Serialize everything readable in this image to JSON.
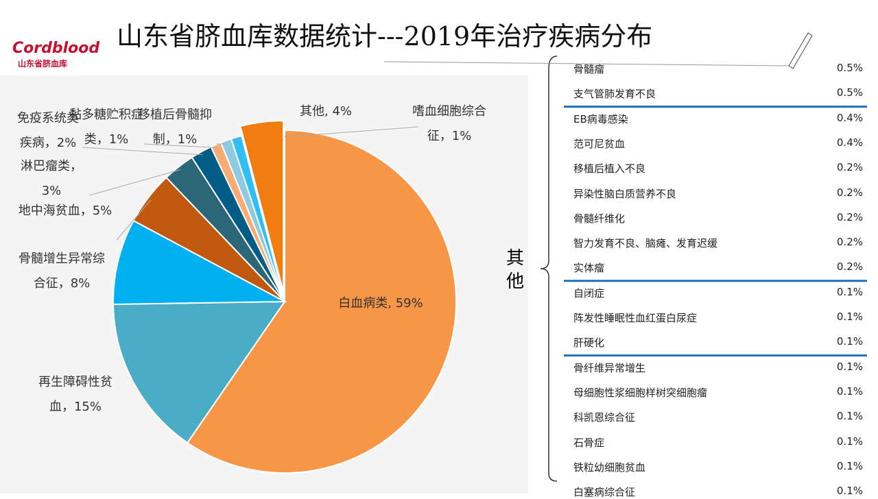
{
  "logo": {
    "brand": "Cordblood",
    "subtitle": "山东省脐血库"
  },
  "chart_data": {
    "type": "pie",
    "title": "山东省脐血库数据统计---2019年治疗疾病分布",
    "categories": [
      "白血病类, 59%",
      "再生障碍性贫血，15%",
      "骨髓增生异常综合征，8%",
      "地中海贫血，5%",
      "淋巴瘤类，3%",
      "免疫系统类疾病，2%",
      "黏多糖贮积症类，1%",
      "移植后骨髓抑制，1%",
      "嗜血细胞综合征，1%",
      "其他, 4%"
    ],
    "values": [
      59,
      15,
      8,
      5,
      3,
      2,
      1,
      1,
      1,
      4
    ],
    "colors": [
      "#f79646",
      "#4bacc6",
      "#00b0f0",
      "#c0580e",
      "#2c6778",
      "#015c86",
      "#f9ab74",
      "#8dcbe3",
      "#2fbff5",
      "#f17c12"
    ]
  },
  "table": {
    "group_label": "其他",
    "rows": [
      [
        "骨髓瘤",
        "0.5%"
      ],
      [
        "支气管肺发育不良",
        "0.5%"
      ],
      [
        "EB病毒感染",
        "0.4%"
      ],
      [
        "范可尼贫血",
        "0.4%"
      ],
      [
        "移植后植入不良",
        "0.2%"
      ],
      [
        "异染性脑白质营养不良",
        "0.2%"
      ],
      [
        "骨髓纤维化",
        "0.2%"
      ],
      [
        "智力发育不良、脑瘫、发育迟缓",
        "0.2%"
      ],
      [
        "实体瘤",
        "0.2%"
      ],
      [
        "自闭症",
        "0.1%"
      ],
      [
        "阵发性睡眠性血红蛋白尿症",
        "0.1%"
      ],
      [
        "肝硬化",
        "0.1%"
      ],
      [
        "骨纤维异常增生",
        "0.1%"
      ],
      [
        "母细胞性浆细胞样树突细胞瘤",
        "0.1%"
      ],
      [
        "科凯恩综合征",
        "0.1%"
      ],
      [
        "石骨症",
        "0.1%"
      ],
      [
        "铁粒幼细胞贫血",
        "0.1%"
      ],
      [
        "白塞病综合征",
        "0.1%"
      ]
    ]
  }
}
